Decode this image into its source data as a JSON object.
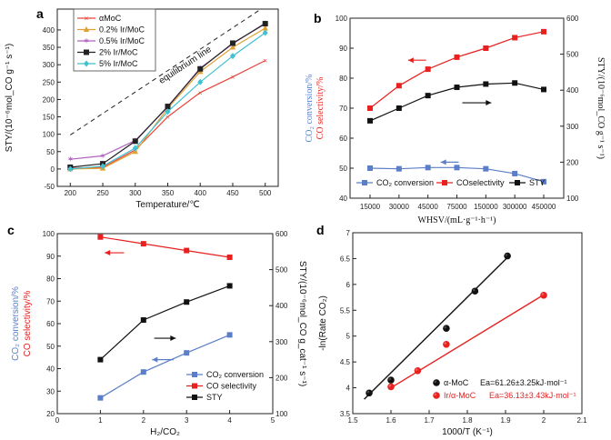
{
  "chart_data": [
    {
      "panel": "a",
      "type": "line",
      "xlabel": "Temperature/℃",
      "ylabel": "STY/(10⁻⁶mol_CO g⁻¹ s⁻¹)",
      "x": [
        200,
        250,
        300,
        350,
        400,
        450,
        500
      ],
      "xlim": [
        180,
        520
      ],
      "ylim": [
        -50,
        460
      ],
      "yticks": [
        -50,
        0,
        50,
        100,
        150,
        200,
        250,
        300,
        350,
        400
      ],
      "series": [
        {
          "name": "αMoC",
          "color": "#e8443a",
          "values": [
            2,
            5,
            55,
            150,
            220,
            265,
            312
          ]
        },
        {
          "name": "0.2% Ir/MoC",
          "color": "#e0a030",
          "values": [
            0,
            2,
            50,
            175,
            280,
            350,
            405
          ]
        },
        {
          "name": "0.5% Ir/MoC",
          "color": "#b060c0",
          "values": [
            28,
            38,
            82,
            178,
            290,
            360,
            420
          ]
        },
        {
          "name": "2% Ir/MoC",
          "color": "#222222",
          "values": [
            5,
            15,
            80,
            180,
            288,
            362,
            418
          ]
        },
        {
          "name": "5% Ir/MoC",
          "color": "#40c0d0",
          "values": [
            0,
            8,
            60,
            165,
            250,
            325,
            392
          ]
        }
      ],
      "equilibrium": {
        "label": "equilibrium line",
        "x": [
          200,
          500
        ],
        "y": [
          98,
          468
        ]
      }
    },
    {
      "panel": "b",
      "type": "line",
      "xlabel": "WHSV/(mL·g⁻¹·h⁻¹)",
      "ylabel_left_1": "CO₂ conversion/%",
      "ylabel_left_2": "CO selectivity/%",
      "ylabel_right": "STY/(10⁻⁶mol_CO g⁻¹ s⁻¹)",
      "categories": [
        "15000",
        "30000",
        "45000",
        "75000",
        "150000",
        "300000",
        "450000"
      ],
      "ylim_left": [
        40,
        100
      ],
      "yticks_left": [
        40,
        50,
        60,
        70,
        80,
        90,
        100
      ],
      "ylim_right": [
        100,
        600
      ],
      "yticks_right": [
        100,
        200,
        300,
        400,
        500,
        600
      ],
      "series": [
        {
          "name": "CO₂ conversion",
          "axis": "left",
          "color": "#5a7ec8",
          "values": [
            50,
            49.8,
            50.2,
            50.2,
            49.8,
            48.2,
            45.5
          ]
        },
        {
          "name": "COselectivity",
          "axis": "left",
          "color": "#e82020",
          "values": [
            70,
            77.5,
            83,
            87,
            90,
            93.5,
            95.5
          ]
        },
        {
          "name": "STY",
          "axis": "right",
          "color": "#111111",
          "values": [
            315,
            350,
            385,
            408,
            417,
            420,
            402
          ]
        }
      ]
    },
    {
      "panel": "c",
      "type": "line",
      "xlabel": "H₂/CO₂",
      "ylabel_left_1": "CO₂ conversion/%",
      "ylabel_left_2": "CO selectivity/%",
      "ylabel_right": "STY/(10⁻⁶mol_CO g_cat⁻¹ s⁻¹)",
      "xlim": [
        0,
        5
      ],
      "xticks": [
        0,
        1,
        2,
        3,
        4,
        5
      ],
      "ylim_left": [
        20,
        100
      ],
      "yticks_left": [
        20,
        30,
        40,
        50,
        60,
        70,
        80,
        90,
        100
      ],
      "ylim_right": [
        100,
        600
      ],
      "yticks_right": [
        100,
        200,
        300,
        400,
        500,
        600
      ],
      "series": [
        {
          "name": "CO₂ conversion",
          "axis": "left",
          "color": "#5a7ec8",
          "x": [
            1,
            2,
            3,
            4
          ],
          "values": [
            27,
            38.5,
            47,
            55
          ]
        },
        {
          "name": "CO selectivity",
          "axis": "left",
          "color": "#e82020",
          "x": [
            1,
            2,
            3,
            4
          ],
          "values": [
            98.5,
            95.5,
            92.5,
            89.5
          ]
        },
        {
          "name": "STY",
          "axis": "right",
          "color": "#111111",
          "x": [
            1,
            2,
            3,
            4
          ],
          "values": [
            250,
            360,
            410,
            455
          ]
        }
      ]
    },
    {
      "panel": "d",
      "type": "scatter",
      "xlabel": "1000/T (K⁻¹)",
      "ylabel": "-ln(Rate CO₂)",
      "xlim": [
        1.5,
        2.1
      ],
      "xticks": [
        1.5,
        1.6,
        1.7,
        1.8,
        1.9,
        2.0,
        2.1
      ],
      "ylim": [
        3.5,
        7.0
      ],
      "yticks": [
        3.5,
        4.0,
        4.5,
        5.0,
        5.5,
        6.0,
        6.5,
        7.0
      ],
      "series": [
        {
          "name": "α-MoC",
          "ea_label": "Ea=61.26±3.25kJ·mol⁻¹",
          "color": "#111111",
          "x": [
            1.543,
            1.6,
            1.745,
            1.82,
            1.905
          ],
          "values": [
            3.9,
            4.15,
            5.15,
            5.87,
            6.55
          ],
          "fit": {
            "x": [
              1.53,
              1.905
            ],
            "y": [
              3.78,
              6.52
            ]
          }
        },
        {
          "name": "Ir/α-MoC",
          "ea_label": "Ea=36.13±3.43kJ·mol⁻¹",
          "color": "#e82020",
          "x": [
            1.6,
            1.67,
            1.745,
            2.0
          ],
          "values": [
            4.02,
            4.33,
            4.84,
            5.79
          ],
          "fit": {
            "x": [
              1.6,
              2.0
            ],
            "y": [
              4.0,
              5.8
            ]
          }
        }
      ]
    }
  ],
  "labels": {
    "a": "a",
    "b": "b",
    "c": "c",
    "d": "d"
  }
}
